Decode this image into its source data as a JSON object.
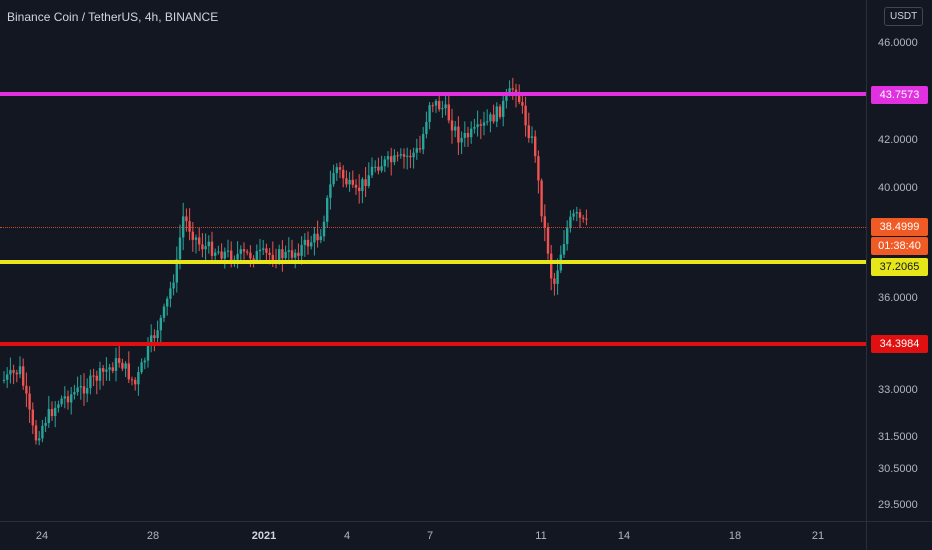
{
  "header": {
    "title": "Binance Coin / TetherUS, 4h, BINANCE",
    "currency": "USDT"
  },
  "price_axis": {
    "ticks": [
      "46.0000",
      "42.0000",
      "40.0000",
      "36.0000",
      "33.0000",
      "31.5000",
      "30.5000",
      "29.5000"
    ]
  },
  "time_axis": {
    "labels": [
      "24",
      "28",
      "2021",
      "4",
      "7",
      "11",
      "14",
      "18",
      "21"
    ]
  },
  "levels": {
    "magenta": {
      "label": "43.7573",
      "color": "#e030e0"
    },
    "yellow": {
      "label": "37.2065",
      "color": "#e6e619"
    },
    "red": {
      "label": "34.3984",
      "color": "#e01010"
    }
  },
  "current": {
    "price": "38.4999",
    "countdown": "01:38:40",
    "color": "#f05a24"
  },
  "colors": {
    "up": "#26a69a",
    "down": "#ef5350",
    "background": "#131722"
  }
}
